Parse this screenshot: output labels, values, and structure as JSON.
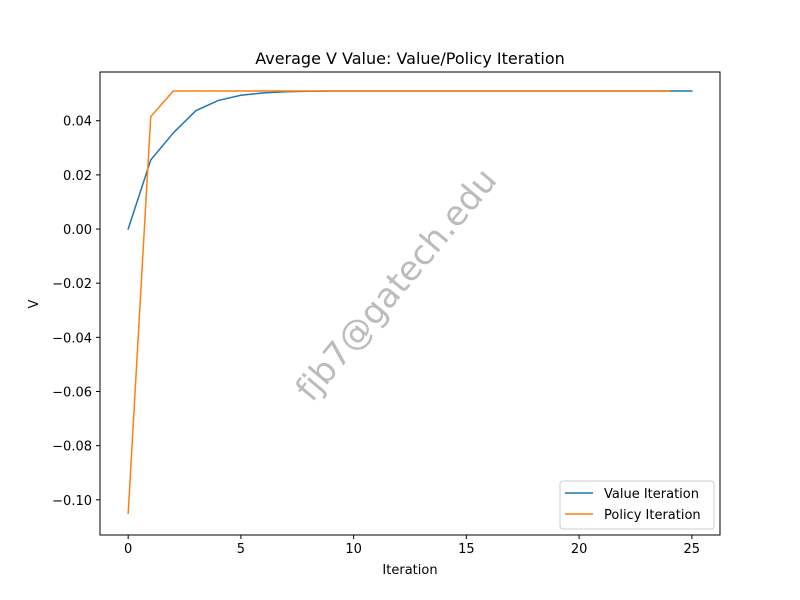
{
  "chart_data": {
    "type": "line",
    "title": "Average V Value: Value/Policy Iteration",
    "xlabel": "Iteration",
    "ylabel": "V",
    "xlim": [
      -1.25,
      26.25
    ],
    "ylim": [
      -0.113,
      0.058
    ],
    "xticks": [
      0,
      5,
      10,
      15,
      20,
      25
    ],
    "xtick_labels": [
      "0",
      "5",
      "10",
      "15",
      "20",
      "25"
    ],
    "yticks": [
      -0.1,
      -0.08,
      -0.06,
      -0.04,
      -0.02,
      0.0,
      0.02,
      0.04
    ],
    "ytick_labels": [
      "−0.10",
      "−0.08",
      "−0.06",
      "−0.04",
      "−0.02",
      "0.00",
      "0.02",
      "0.04"
    ],
    "grid": false,
    "legend_position": "lower-right",
    "series": [
      {
        "name": "Value Iteration",
        "color": "#1f77b4",
        "x": [
          0,
          1,
          2,
          3,
          4,
          5,
          6,
          7,
          8,
          9,
          10,
          11,
          12,
          13,
          14,
          15,
          16,
          17,
          18,
          19,
          20,
          21,
          22,
          23,
          24,
          25
        ],
        "y": [
          0.0,
          0.0255,
          0.0355,
          0.0437,
          0.0475,
          0.0494,
          0.0503,
          0.0507,
          0.0509,
          0.051,
          0.051,
          0.051,
          0.051,
          0.051,
          0.051,
          0.051,
          0.051,
          0.051,
          0.051,
          0.051,
          0.051,
          0.051,
          0.051,
          0.051,
          0.051,
          0.051
        ]
      },
      {
        "name": "Policy Iteration",
        "color": "#ff7f0e",
        "x": [
          0,
          1,
          2,
          3,
          4,
          5,
          6,
          7,
          8,
          9,
          10,
          11,
          12,
          13,
          14,
          15,
          16,
          17,
          18,
          19,
          20,
          21,
          22,
          23,
          24
        ],
        "y": [
          -0.105,
          0.0415,
          0.051,
          0.051,
          0.051,
          0.051,
          0.051,
          0.051,
          0.051,
          0.051,
          0.051,
          0.051,
          0.051,
          0.051,
          0.051,
          0.051,
          0.051,
          0.051,
          0.051,
          0.051,
          0.051,
          0.051,
          0.051,
          0.051,
          0.051
        ]
      }
    ],
    "watermark": "fjb7@gatech.edu"
  }
}
